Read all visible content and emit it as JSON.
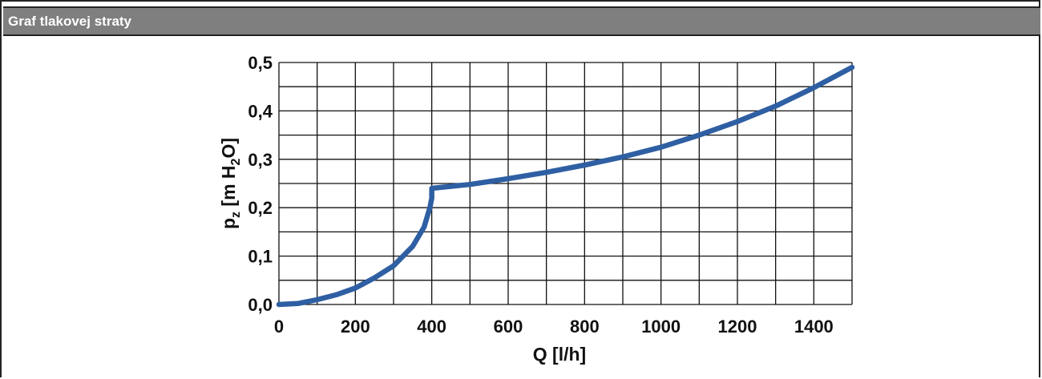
{
  "panel": {
    "title": "Graf tlakovej straty"
  },
  "chart_data": {
    "type": "line",
    "xlabel": "Q [l/h]",
    "ylabel_parts": {
      "p": "p",
      "p_sub": "z",
      "rest1": " [m H",
      "h_sub": "2",
      "rest2": "O]"
    },
    "xlim": [
      0,
      1500
    ],
    "ylim": [
      0,
      0.5
    ],
    "x_grid_step": 100,
    "y_grid_step": 0.05,
    "x_ticks": [
      0,
      200,
      400,
      600,
      800,
      1000,
      1200,
      1400
    ],
    "x_tick_labels": [
      "0",
      "200",
      "400",
      "600",
      "800",
      "1000",
      "1200",
      "1400"
    ],
    "y_ticks": [
      0,
      0.1,
      0.2,
      0.3,
      0.4,
      0.5
    ],
    "y_tick_labels": [
      "0,0",
      "0,1",
      "0,2",
      "0,3",
      "0,4",
      "0,5"
    ],
    "grid": true,
    "line_color": "#2f5fa3",
    "series": [
      {
        "x": [
          0,
          50,
          100,
          150,
          200,
          250,
          300,
          350,
          380,
          395,
          400,
          400,
          500,
          600,
          700,
          800,
          900,
          1000,
          1100,
          1200,
          1300,
          1400,
          1500
        ],
        "y": [
          0,
          0.002,
          0.01,
          0.02,
          0.034,
          0.055,
          0.08,
          0.12,
          0.16,
          0.2,
          0.22,
          0.24,
          0.248,
          0.26,
          0.273,
          0.288,
          0.305,
          0.325,
          0.35,
          0.378,
          0.41,
          0.448,
          0.49
        ]
      }
    ]
  }
}
